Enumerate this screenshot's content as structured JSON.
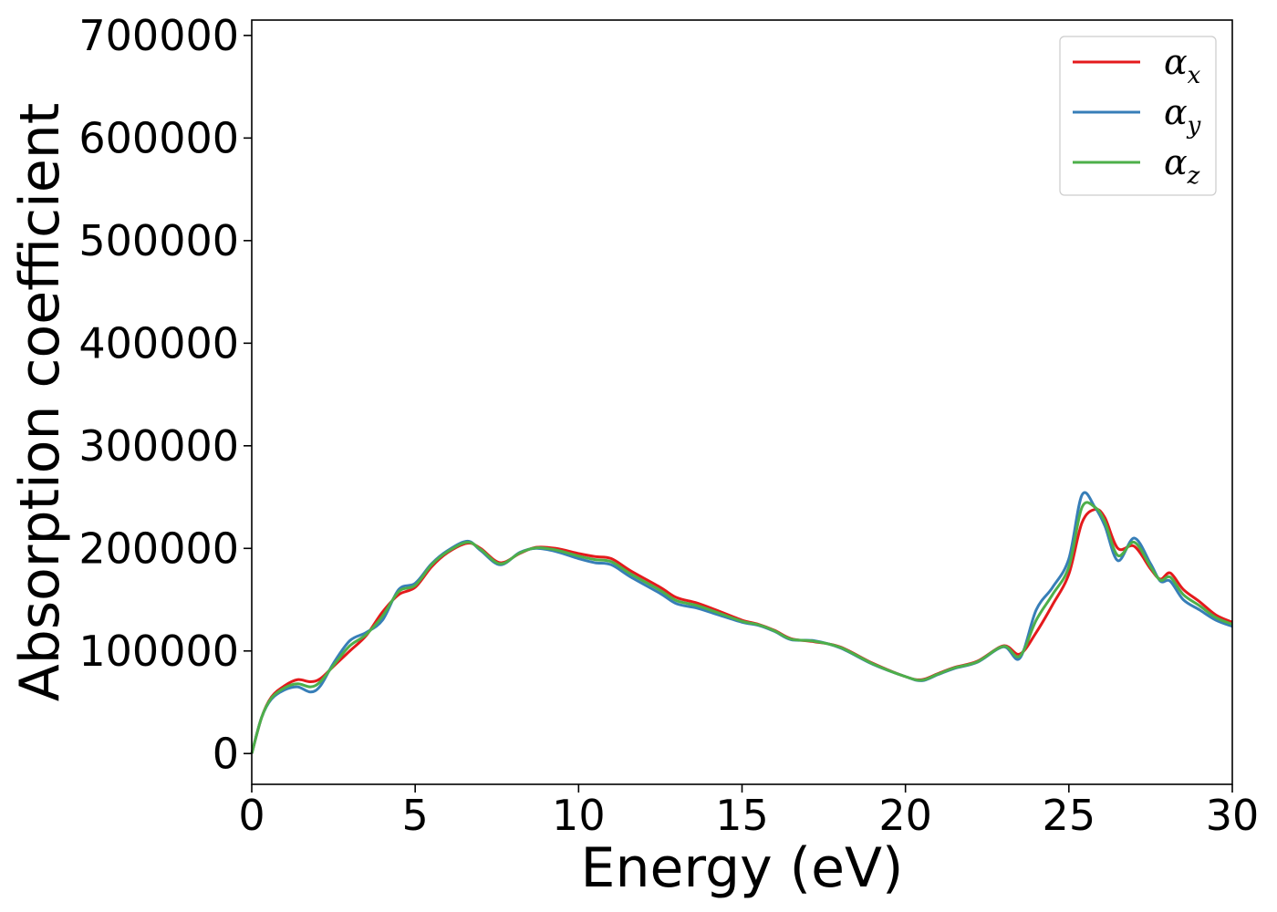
{
  "chart_data": {
    "type": "line",
    "xlabel": "Energy (eV)",
    "ylabel": "Absorption coefficient",
    "xlim": [
      0,
      30
    ],
    "ylim": [
      -30000,
      715000
    ],
    "xticks": [
      0,
      5,
      10,
      15,
      20,
      25,
      30
    ],
    "xtick_labels": [
      "0",
      "5",
      "10",
      "15",
      "20",
      "25",
      "30"
    ],
    "yticks": [
      0,
      100000,
      200000,
      300000,
      400000,
      500000,
      600000,
      700000
    ],
    "ytick_labels": [
      "0",
      "100000",
      "200000",
      "300000",
      "400000",
      "500000",
      "600000",
      "700000"
    ],
    "grid": false,
    "legend_position": "top-right",
    "series": [
      {
        "name": "α_x",
        "legend_base": "α",
        "legend_sub": "x",
        "color": "#e41a1c",
        "x": [
          0,
          0.3,
          0.6,
          1.0,
          1.4,
          1.8,
          2.1,
          2.5,
          3.0,
          3.5,
          4.0,
          4.5,
          5.0,
          5.5,
          6.0,
          6.6,
          7.0,
          7.6,
          8.2,
          8.7,
          9.3,
          10.0,
          10.5,
          11.0,
          11.6,
          12.5,
          13.0,
          13.6,
          14.2,
          15.0,
          15.5,
          16.0,
          16.5,
          17.2,
          18.0,
          19.0,
          20.0,
          20.5,
          21.0,
          21.5,
          22.2,
          23.0,
          23.5,
          24.0,
          24.5,
          25.0,
          25.4,
          25.8,
          26.1,
          26.5,
          27.0,
          27.5,
          27.8,
          28.1,
          28.5,
          29.0,
          29.5,
          30.0
        ],
        "y": [
          0,
          35000,
          55000,
          66000,
          72000,
          70000,
          73000,
          85000,
          100000,
          115000,
          138000,
          155000,
          162000,
          182000,
          196000,
          205000,
          200000,
          186000,
          195000,
          201000,
          200000,
          195000,
          192000,
          190000,
          178000,
          162000,
          152000,
          147000,
          140000,
          130000,
          126000,
          120000,
          112000,
          109000,
          104000,
          88000,
          75000,
          72000,
          78000,
          84000,
          90000,
          105000,
          97000,
          118000,
          145000,
          175000,
          225000,
          238000,
          230000,
          200000,
          202000,
          180000,
          170000,
          176000,
          160000,
          148000,
          135000,
          128000
        ]
      },
      {
        "name": "α_y",
        "legend_base": "α",
        "legend_sub": "y",
        "color": "#377eb8",
        "x": [
          0,
          0.3,
          0.6,
          1.0,
          1.4,
          1.8,
          2.1,
          2.5,
          3.0,
          3.5,
          4.0,
          4.5,
          5.0,
          5.5,
          6.0,
          6.6,
          7.0,
          7.6,
          8.2,
          8.7,
          9.3,
          10.0,
          10.5,
          11.0,
          11.6,
          12.5,
          13.0,
          13.6,
          14.2,
          15.0,
          15.5,
          16.0,
          16.5,
          17.2,
          18.0,
          19.0,
          20.0,
          20.5,
          21.0,
          21.5,
          22.2,
          23.0,
          23.5,
          24.0,
          24.5,
          25.0,
          25.4,
          25.8,
          26.1,
          26.5,
          27.0,
          27.5,
          27.8,
          28.1,
          28.5,
          29.0,
          29.5,
          30.0
        ],
        "y": [
          0,
          35000,
          53000,
          62000,
          65000,
          60000,
          66000,
          88000,
          110000,
          118000,
          130000,
          160000,
          166000,
          185000,
          198000,
          207000,
          198000,
          184000,
          196000,
          200000,
          197000,
          190000,
          186000,
          184000,
          172000,
          156000,
          146000,
          142000,
          136000,
          128000,
          125000,
          119000,
          111000,
          110000,
          103000,
          87000,
          75000,
          71000,
          77000,
          83000,
          89000,
          104000,
          93000,
          140000,
          162000,
          190000,
          252000,
          240000,
          222000,
          188000,
          210000,
          185000,
          168000,
          168000,
          150000,
          140000,
          130000,
          124000
        ]
      },
      {
        "name": "α_z",
        "legend_base": "α",
        "legend_sub": "z",
        "color": "#4daf4a",
        "x": [
          0,
          0.3,
          0.6,
          1.0,
          1.4,
          1.8,
          2.1,
          2.5,
          3.0,
          3.5,
          4.0,
          4.5,
          5.0,
          5.5,
          6.0,
          6.6,
          7.0,
          7.6,
          8.2,
          8.7,
          9.3,
          10.0,
          10.5,
          11.0,
          11.6,
          12.5,
          13.0,
          13.6,
          14.2,
          15.0,
          15.5,
          16.0,
          16.5,
          17.2,
          18.0,
          19.0,
          20.0,
          20.5,
          21.0,
          21.5,
          22.2,
          23.0,
          23.5,
          24.0,
          24.5,
          25.0,
          25.4,
          25.8,
          26.1,
          26.5,
          27.0,
          27.5,
          27.8,
          28.1,
          28.5,
          29.0,
          29.5,
          30.0
        ],
        "y": [
          0,
          35000,
          54000,
          64000,
          68000,
          65000,
          70000,
          86000,
          105000,
          116000,
          134000,
          158000,
          164000,
          184000,
          197000,
          206000,
          199000,
          185000,
          195500,
          200500,
          198500,
          192500,
          189000,
          187000,
          175000,
          159000,
          149000,
          144500,
          138000,
          129000,
          125500,
          119500,
          111500,
          109500,
          103500,
          87500,
          75000,
          71500,
          77500,
          83500,
          89500,
          104500,
          95000,
          130000,
          155000,
          182000,
          240000,
          240000,
          226000,
          193000,
          206000,
          182000,
          169000,
          172000,
          155000,
          144000,
          132500,
          126000
        ]
      }
    ]
  }
}
